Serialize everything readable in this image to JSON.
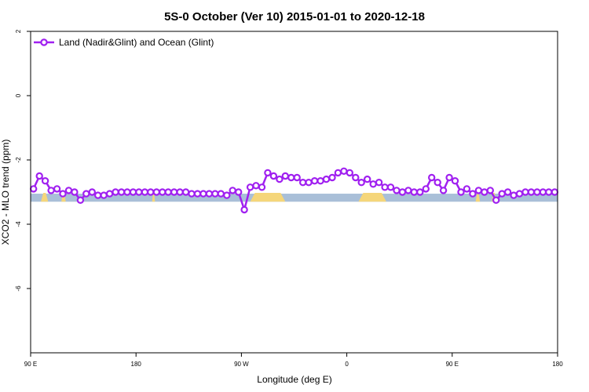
{
  "colors": {
    "series": "#a020f0",
    "ocean_band": "#a9bfd8",
    "land_band": "#f5d67a",
    "axis": "#000000"
  },
  "chart_data": {
    "type": "line",
    "title": "5S-0 October (Ver 10)   2015-01-01 to 2020-12-18",
    "xlabel": "Longitude (deg E)",
    "ylabel": "XCO2 - MLO trend (ppm)",
    "ylim": [
      -8,
      2
    ],
    "xlim": [
      90,
      450
    ],
    "x_ticks": [
      {
        "value": 90,
        "label": "90 E"
      },
      {
        "value": 162,
        "label": "180"
      },
      {
        "value": 234,
        "label": "90 W"
      },
      {
        "value": 306,
        "label": "0"
      },
      {
        "value": 378,
        "label": "90 E"
      },
      {
        "value": 450,
        "label": "180"
      }
    ],
    "y_ticks": [
      {
        "value": 2,
        "label": "2"
      },
      {
        "value": 0,
        "label": "0"
      },
      {
        "value": -2,
        "label": "-2"
      },
      {
        "value": -4,
        "label": "-4"
      },
      {
        "value": -6,
        "label": "-6"
      }
    ],
    "grid": false,
    "legend_position": "top-left",
    "surface_band": {
      "y_top": -3.05,
      "y_bottom": -3.3,
      "land_segments": [
        [
          97,
          102
        ],
        [
          111,
          114
        ],
        [
          173,
          175
        ],
        [
          240,
          264
        ],
        [
          314,
          333
        ],
        [
          394,
          397
        ],
        [
          405,
          408
        ]
      ]
    },
    "series": [
      {
        "name": "Land (Nadir&Glint) and Ocean (Glint)",
        "x": [
          92,
          96,
          100,
          104,
          108,
          112,
          116,
          120,
          124,
          128,
          132,
          136,
          140,
          144,
          148,
          152,
          156,
          160,
          164,
          168,
          172,
          176,
          180,
          184,
          188,
          192,
          196,
          200,
          204,
          208,
          212,
          216,
          220,
          224,
          228,
          232,
          236,
          240,
          244,
          248,
          252,
          256,
          260,
          264,
          268,
          272,
          276,
          280,
          284,
          288,
          292,
          296,
          300,
          304,
          308,
          312,
          316,
          320,
          324,
          328,
          332,
          336,
          340,
          344,
          348,
          352,
          356,
          360,
          364,
          368,
          372,
          376,
          380,
          384,
          388,
          392,
          396,
          400,
          404,
          408,
          412,
          416,
          420,
          424,
          428,
          432,
          436,
          440,
          444,
          448
        ],
        "values": [
          -2.9,
          -2.5,
          -2.65,
          -2.95,
          -2.9,
          -3.05,
          -2.95,
          -3.0,
          -3.25,
          -3.05,
          -3.0,
          -3.1,
          -3.1,
          -3.05,
          -3.0,
          -3.0,
          -3.0,
          -3.0,
          -3.0,
          -3.0,
          -3.0,
          -3.0,
          -3.0,
          -3.0,
          -3.0,
          -3.0,
          -3.0,
          -3.05,
          -3.05,
          -3.05,
          -3.05,
          -3.05,
          -3.05,
          -3.1,
          -2.95,
          -3.0,
          -3.55,
          -2.85,
          -2.8,
          -2.85,
          -2.4,
          -2.5,
          -2.6,
          -2.5,
          -2.55,
          -2.55,
          -2.7,
          -2.7,
          -2.65,
          -2.65,
          -2.6,
          -2.55,
          -2.4,
          -2.35,
          -2.4,
          -2.55,
          -2.7,
          -2.6,
          -2.75,
          -2.7,
          -2.85,
          -2.85,
          -2.95,
          -3.0,
          -2.95,
          -3.0,
          -3.0,
          -2.9,
          -2.55,
          -2.7,
          -2.95,
          -2.55,
          -2.65,
          -3.0,
          -2.9,
          -3.05,
          -2.95,
          -3.0,
          -2.95,
          -3.25,
          -3.05,
          -3.0,
          -3.1,
          -3.05,
          -3.0,
          -3.0,
          -3.0,
          -3.0,
          -3.0,
          -3.0
        ]
      }
    ]
  }
}
